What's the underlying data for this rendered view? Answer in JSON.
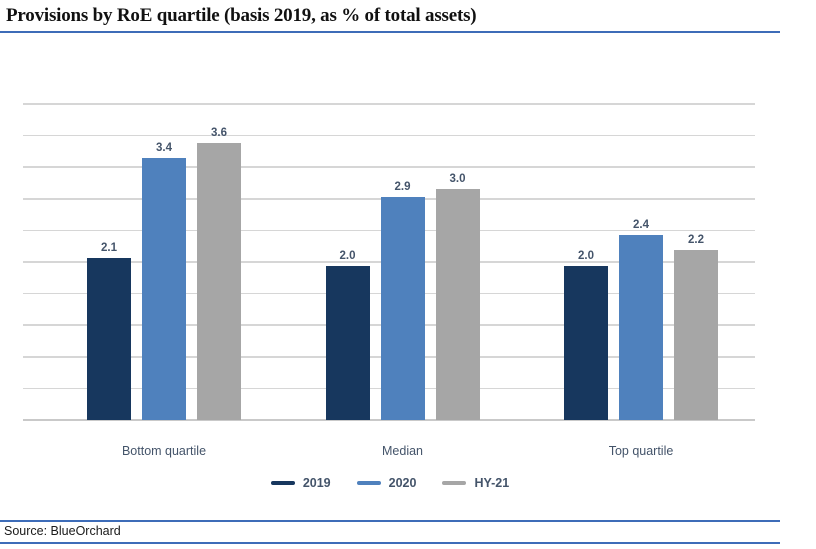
{
  "header": {
    "title": "Provisions by RoE quartile (basis 2019, as % of total assets)"
  },
  "footer": {
    "source": "Source: BlueOrchard"
  },
  "colors": {
    "series_2019": "#17375e",
    "series_2020": "#4f81bd",
    "series_hy21": "#a6a6a6",
    "rule_blue": "#3d6cb8",
    "gridline": "#d6d6d6",
    "axis_line": "#c9c9c9",
    "text_label": "#44546a"
  },
  "chart_data": {
    "type": "bar",
    "title": "Provisions by RoE quartile (basis 2019, as % of total assets)",
    "categories": [
      "Bottom quartile",
      "Median",
      "Top quartile"
    ],
    "series": [
      {
        "name": "2019",
        "color": "#17375e",
        "values": [
          2.1,
          2.0,
          2.0
        ]
      },
      {
        "name": "2020",
        "color": "#4f81bd",
        "values": [
          3.4,
          2.9,
          2.4
        ]
      },
      {
        "name": "HY-21",
        "color": "#a6a6a6",
        "values": [
          3.6,
          3.0,
          2.2
        ]
      }
    ],
    "xlabel": "",
    "ylabel": "",
    "ylim": [
      0,
      4.1
    ],
    "gridline_count": 11,
    "grid": true,
    "y_axis_labels_visible": false,
    "data_labels": true,
    "data_label_format": "0.0",
    "legend_position": "bottom"
  }
}
